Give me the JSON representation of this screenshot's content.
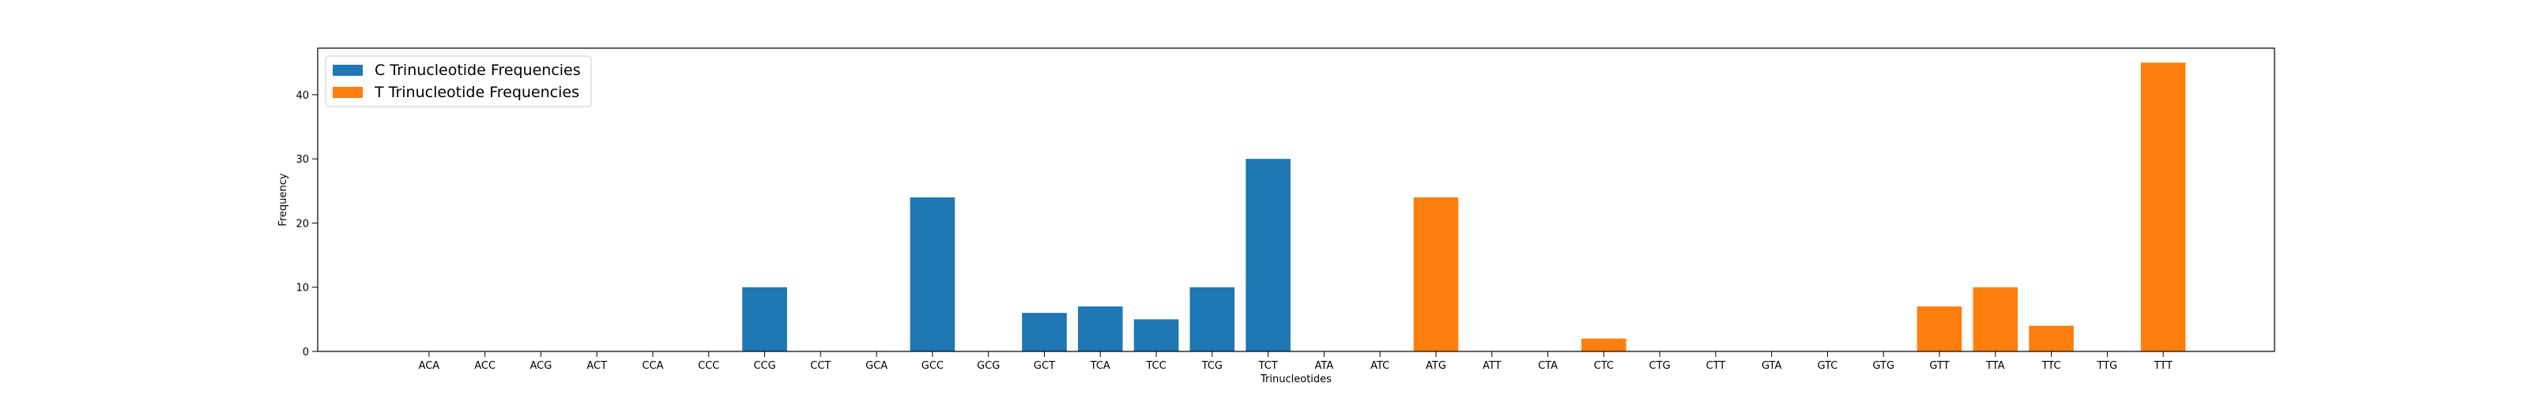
{
  "chart_data": {
    "type": "bar",
    "xlabel": "Trinucleotides",
    "ylabel": "Frequency",
    "categories": [
      "ACA",
      "ACC",
      "ACG",
      "ACT",
      "CCA",
      "CCC",
      "CCG",
      "CCT",
      "GCA",
      "GCC",
      "GCG",
      "GCT",
      "TCA",
      "TCC",
      "TCG",
      "TCT",
      "ATA",
      "ATC",
      "ATG",
      "ATT",
      "CTA",
      "CTC",
      "CTG",
      "CTT",
      "GTA",
      "GTC",
      "GTG",
      "GTT",
      "TTA",
      "TTC",
      "TTG",
      "TTT"
    ],
    "series": [
      {
        "name": "C Trinucleotide Frequencies",
        "color": "#1f77b4",
        "values": [
          0,
          0,
          0,
          0,
          0,
          0,
          10,
          0,
          0,
          24,
          0,
          6,
          7,
          5,
          10,
          30,
          null,
          null,
          null,
          null,
          null,
          null,
          null,
          null,
          null,
          null,
          null,
          null,
          null,
          null,
          null,
          null
        ]
      },
      {
        "name": "T Trinucleotide Frequencies",
        "color": "#ff7f0e",
        "values": [
          null,
          null,
          null,
          null,
          null,
          null,
          null,
          null,
          null,
          null,
          null,
          null,
          null,
          null,
          null,
          null,
          0,
          0,
          24,
          0,
          0,
          2,
          0,
          0,
          0,
          0,
          0,
          7,
          10,
          4,
          0,
          45
        ]
      }
    ],
    "ylim": [
      0,
      47.25
    ],
    "yticks": [
      0,
      10,
      20,
      30,
      40
    ],
    "legend": "upper left"
  }
}
